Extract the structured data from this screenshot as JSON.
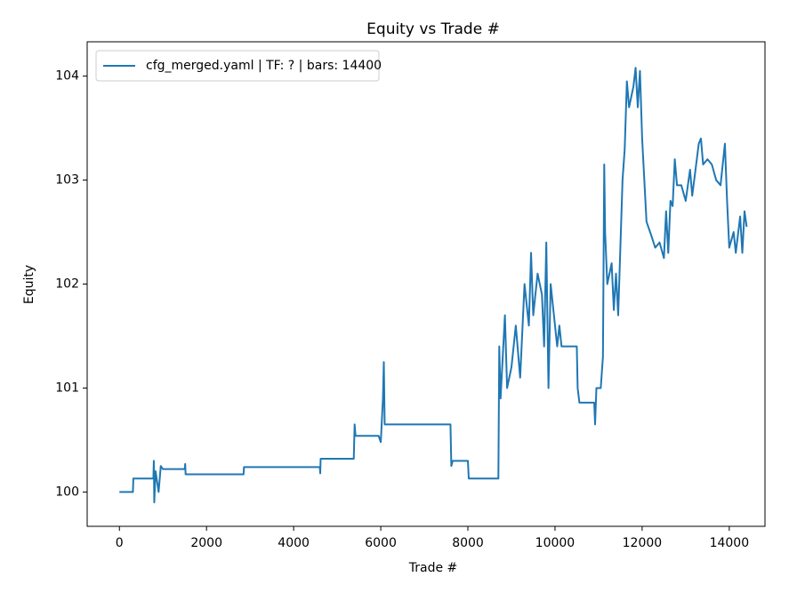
{
  "chart_data": {
    "type": "line",
    "title": "Equity vs Trade #",
    "x_label": "Trade #",
    "y_label": "Equity",
    "x": [
      0,
      310,
      320,
      780,
      790,
      800,
      830,
      900,
      950,
      1000,
      1500,
      1510,
      1520,
      2850,
      2860,
      4600,
      4610,
      4620,
      5380,
      5400,
      5420,
      5950,
      6000,
      6050,
      6070,
      6090,
      7600,
      7620,
      7650,
      8000,
      8020,
      8700,
      8720,
      8750,
      8850,
      8900,
      9000,
      9100,
      9200,
      9300,
      9400,
      9450,
      9500,
      9600,
      9700,
      9750,
      9800,
      9850,
      9900,
      10000,
      10050,
      10100,
      10150,
      10500,
      10520,
      10560,
      10900,
      10920,
      10950,
      11050,
      11100,
      11130,
      11150,
      11200,
      11300,
      11350,
      11400,
      11450,
      11550,
      11600,
      11650,
      11700,
      11800,
      11850,
      11900,
      11950,
      12000,
      12100,
      12200,
      12300,
      12400,
      12500,
      12550,
      12600,
      12650,
      12700,
      12750,
      12800,
      12900,
      13000,
      13100,
      13150,
      13300,
      13350,
      13400,
      13500,
      13600,
      13700,
      13800,
      13900,
      13950,
      14000,
      14100,
      14150,
      14250,
      14300,
      14350,
      14400
    ],
    "series": [
      {
        "name": "cfg_merged.yaml | TF: ? | bars: 14400",
        "color": "#1f77b4",
        "values": [
          100,
          100,
          100.13,
          100.13,
          100.3,
          99.9,
          100.2,
          100.0,
          100.25,
          100.22,
          100.22,
          100.27,
          100.17,
          100.17,
          100.24,
          100.24,
          100.18,
          100.32,
          100.32,
          100.65,
          100.54,
          100.54,
          100.48,
          100.9,
          101.25,
          100.65,
          100.65,
          100.25,
          100.3,
          100.3,
          100.13,
          100.13,
          101.4,
          100.9,
          101.7,
          101.0,
          101.2,
          101.6,
          101.1,
          102.0,
          101.6,
          102.3,
          101.7,
          102.1,
          101.9,
          101.4,
          102.4,
          101.0,
          102.0,
          101.6,
          101.4,
          101.6,
          101.4,
          101.4,
          101.0,
          100.86,
          100.86,
          100.65,
          101.0,
          101.0,
          101.3,
          103.15,
          102.5,
          102.0,
          102.2,
          101.75,
          102.1,
          101.7,
          103.0,
          103.3,
          103.95,
          103.7,
          103.9,
          104.08,
          103.7,
          104.05,
          103.4,
          102.6,
          102.48,
          102.35,
          102.4,
          102.25,
          102.7,
          102.3,
          102.8,
          102.75,
          103.2,
          102.95,
          102.95,
          102.8,
          103.1,
          102.85,
          103.35,
          103.4,
          103.15,
          103.2,
          103.15,
          103.0,
          102.95,
          103.35,
          102.8,
          102.35,
          102.5,
          102.3,
          102.65,
          102.3,
          102.7,
          102.55
        ]
      }
    ],
    "xlim": [
      -740,
      14820
    ],
    "ylim": [
      99.67,
      104.33
    ],
    "xticks": [
      0,
      2000,
      4000,
      6000,
      8000,
      10000,
      12000,
      14000
    ],
    "yticks": [
      100,
      101,
      102,
      103,
      104
    ],
    "legend": "upper left"
  }
}
